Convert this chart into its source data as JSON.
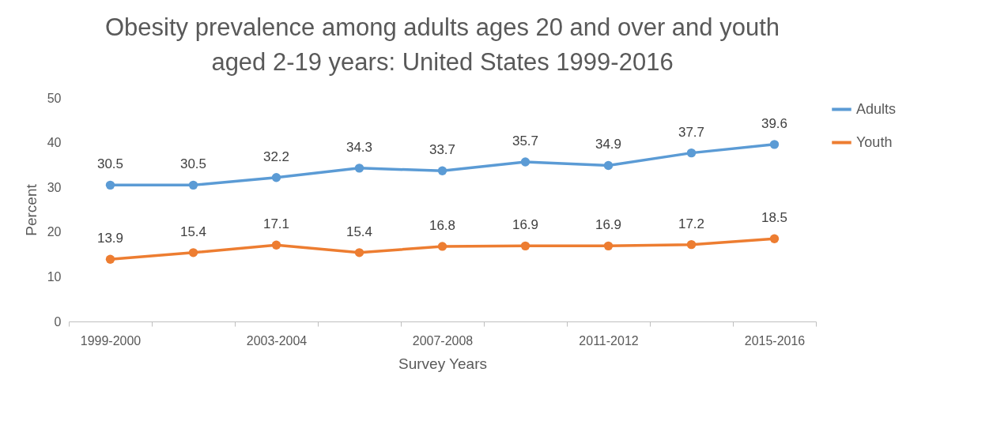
{
  "chart_data": {
    "type": "line",
    "title": "Obesity prevalence among adults ages 20 and over and youth aged 2-19 years: United States 1999-2016",
    "xlabel": "Survey Years",
    "ylabel": "Percent",
    "categories": [
      "1999-2000",
      null,
      "2003-2004",
      null,
      "2007-2008",
      null,
      "2011-2012",
      null,
      "2015-2016"
    ],
    "series": [
      {
        "name": "Adults",
        "color": "#5b9bd5",
        "values": [
          30.5,
          30.5,
          32.2,
          34.3,
          33.7,
          35.7,
          34.9,
          37.7,
          39.6
        ]
      },
      {
        "name": "Youth",
        "color": "#ed7d31",
        "values": [
          13.9,
          15.4,
          17.1,
          15.4,
          16.8,
          16.9,
          16.9,
          17.2,
          18.5
        ]
      }
    ],
    "ylim": [
      0,
      50
    ],
    "yticks": [
      0,
      10,
      20,
      30,
      40,
      50
    ],
    "grid": false,
    "legend": "right",
    "marker": "circle",
    "line_style": "solid",
    "data_labels": true
  }
}
